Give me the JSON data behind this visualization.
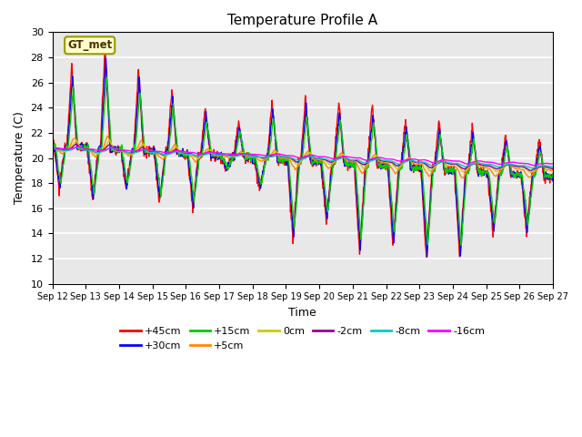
{
  "title": "Temperature Profile A",
  "xlabel": "Time",
  "ylabel": "Temperature (C)",
  "ylim": [
    10,
    30
  ],
  "xlim": [
    0,
    360
  ],
  "bg_color": "#e8e8e8",
  "grid_color": "white",
  "annotation_text": "GT_met",
  "annotation_bg": "#ffffcc",
  "annotation_border": "#999900",
  "xtick_labels": [
    "Sep 12",
    "Sep 13",
    "Sep 14",
    "Sep 15",
    "Sep 16",
    "Sep 17",
    "Sep 18",
    "Sep 19",
    "Sep 20",
    "Sep 21",
    "Sep 22",
    "Sep 23",
    "Sep 24",
    "Sep 25",
    "Sep 26",
    "Sep 27"
  ],
  "xtick_positions": [
    0,
    24,
    48,
    72,
    96,
    120,
    144,
    168,
    192,
    216,
    240,
    264,
    288,
    312,
    336,
    360
  ],
  "ytick_positions": [
    10,
    12,
    14,
    16,
    18,
    20,
    22,
    24,
    26,
    28,
    30
  ],
  "series": {
    "+45cm": {
      "color": "#ff0000",
      "lw": 1.0
    },
    "+30cm": {
      "color": "#0000ff",
      "lw": 1.0
    },
    "+15cm": {
      "color": "#00cc00",
      "lw": 1.0
    },
    "+5cm": {
      "color": "#ff8800",
      "lw": 1.0
    },
    "0cm": {
      "color": "#cccc00",
      "lw": 1.0
    },
    "-2cm": {
      "color": "#990099",
      "lw": 1.0
    },
    "-8cm": {
      "color": "#00cccc",
      "lw": 1.0
    },
    "-16cm": {
      "color": "#ff00ff",
      "lw": 1.0
    }
  }
}
